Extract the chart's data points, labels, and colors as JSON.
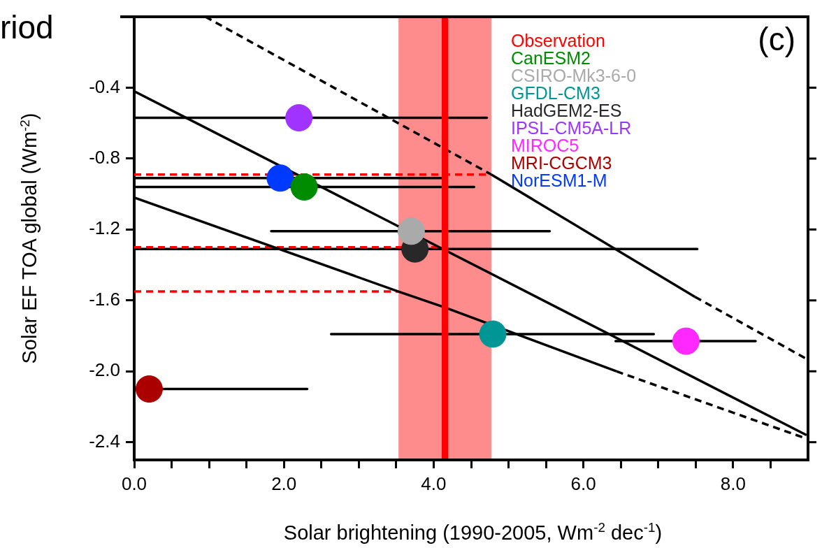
{
  "chart_data": {
    "type": "scatter",
    "title": "riod",
    "xlabel": "Solar brightening (1990-2005, Wm$^{-2}$ dec$^{-1}$)",
    "ylabel": "Solar EF TOA global (Wm$^{-2}$)",
    "annotations": [
      "(c)"
    ],
    "xlim": [
      0,
      9
    ],
    "xticks": [
      {
        "value": 0,
        "label": "0.0"
      },
      {
        "value": 0.5,
        "label": null
      },
      {
        "value": 1,
        "label": null
      },
      {
        "value": 1.5,
        "label": null
      },
      {
        "value": 2,
        "label": "2.0"
      },
      {
        "value": 2.5,
        "label": null
      },
      {
        "value": 3,
        "label": null
      },
      {
        "value": 3.5,
        "label": null
      },
      {
        "value": 4,
        "label": "4.0"
      },
      {
        "value": 4.5,
        "label": null
      },
      {
        "value": 5,
        "label": null
      },
      {
        "value": 5.5,
        "label": null
      },
      {
        "value": 6,
        "label": "6.0"
      },
      {
        "value": 6.5,
        "label": null
      },
      {
        "value": 7,
        "label": null
      },
      {
        "value": 7.5,
        "label": null
      },
      {
        "value": 8,
        "label": "8.0"
      },
      {
        "value": 8.5,
        "label": null
      }
    ],
    "ylim": [
      -2.5,
      0
    ],
    "yticks": [
      -0.4,
      -0.8,
      -1.2,
      -1.6,
      {
        "value": -2,
        "label": "-2.0"
      },
      -2.4
    ],
    "marker": "circle",
    "legend": "top right",
    "ref_lines": [
      {
        "axis": "x",
        "value": 4.15,
        "label": "Observation",
        "color": "#ff0000"
      }
    ],
    "bands": [
      {
        "axis": "x",
        "from": 3.53,
        "to": 4.77,
        "color": "#ff8c8c"
      }
    ],
    "series": [
      {
        "type": "line",
        "marker": "none",
        "color": "#000000",
        "line_style": "dashed",
        "x": [
          0.95,
          4.77
        ],
        "values": [
          0,
          -0.89
        ]
      },
      {
        "type": "line",
        "marker": "none",
        "color": "#000000",
        "line_style": "solid",
        "x": [
          4.77,
          7.49
        ],
        "values": [
          -0.89,
          -1.58
        ]
      },
      {
        "type": "line",
        "marker": "none",
        "color": "#000000",
        "line_style": "dashed",
        "x": [
          7.49,
          8.98
        ],
        "values": [
          -1.58,
          -1.93
        ]
      },
      {
        "type": "line",
        "marker": "none",
        "color": "#000000",
        "line_style": "solid",
        "x": [
          0,
          8.98
        ],
        "values": [
          -0.42,
          -2.36
        ]
      },
      {
        "type": "line",
        "marker": "none",
        "color": "#000000",
        "line_style": "solid",
        "x": [
          0,
          3.53,
          4.15,
          6.44
        ],
        "values": [
          -1.02,
          -1.55,
          -1.64,
          -2.0
        ]
      },
      {
        "type": "line",
        "marker": "none",
        "color": "#000000",
        "line_style": "dashed",
        "x": [
          6.44,
          8.98
        ],
        "values": [
          -2.0,
          -2.38
        ]
      },
      {
        "type": "line",
        "marker": "none",
        "color": "#ff0000",
        "line_style": "dashed",
        "x": [
          0,
          4.77
        ],
        "values": [
          -0.89,
          -0.89
        ]
      },
      {
        "type": "line",
        "marker": "none",
        "color": "#ff0000",
        "line_style": "dashed",
        "x": [
          0,
          4.15
        ],
        "values": [
          -1.3,
          -1.3
        ]
      },
      {
        "type": "line",
        "marker": "none",
        "color": "#ff0000",
        "line_style": "dashed",
        "x": [
          0,
          3.53
        ],
        "values": [
          -1.55,
          -1.55
        ]
      },
      {
        "name": "CanESM2",
        "color": "#008c00",
        "x": [
          2.27
        ],
        "values": [
          -0.96
        ],
        "xerrors": [
          [
            0,
            4.54
          ]
        ]
      },
      {
        "name": "CSIRO-Mk3-6-0",
        "color": "#aaaaaa",
        "x": [
          3.7
        ],
        "values": [
          -1.21
        ],
        "xerrors": [
          [
            1.83,
            5.55
          ]
        ]
      },
      {
        "name": "GFDL-CM3",
        "color": "#009696",
        "x": [
          4.79
        ],
        "values": [
          -1.79
        ],
        "xerrors": [
          [
            2.63,
            6.94
          ]
        ]
      },
      {
        "name": "HadGEM2-ES",
        "color": "#282828",
        "x": [
          3.75
        ],
        "values": [
          -1.31
        ],
        "xerrors": [
          [
            0,
            7.52
          ]
        ]
      },
      {
        "name": "IPSL-CM5A-LR",
        "color": "#a033ff",
        "x": [
          2.2
        ],
        "values": [
          -0.57
        ],
        "xerrors": [
          [
            0,
            4.71
          ]
        ]
      },
      {
        "name": "MIROC5",
        "color": "#ff28ff",
        "x": [
          7.37
        ],
        "values": [
          -1.83
        ],
        "xerrors": [
          [
            6.43,
            8.3
          ]
        ]
      },
      {
        "name": "MRI-CGCM3",
        "color": "#aa0000",
        "x": [
          0.2
        ],
        "values": [
          -2.1
        ],
        "xerrors": [
          [
            0,
            2.31
          ]
        ]
      },
      {
        "name": "NorESM1-M",
        "color": "#0039ff",
        "x": [
          1.95
        ],
        "values": [
          -0.91
        ],
        "xerrors": [
          [
            0,
            4.12
          ]
        ]
      }
    ]
  }
}
